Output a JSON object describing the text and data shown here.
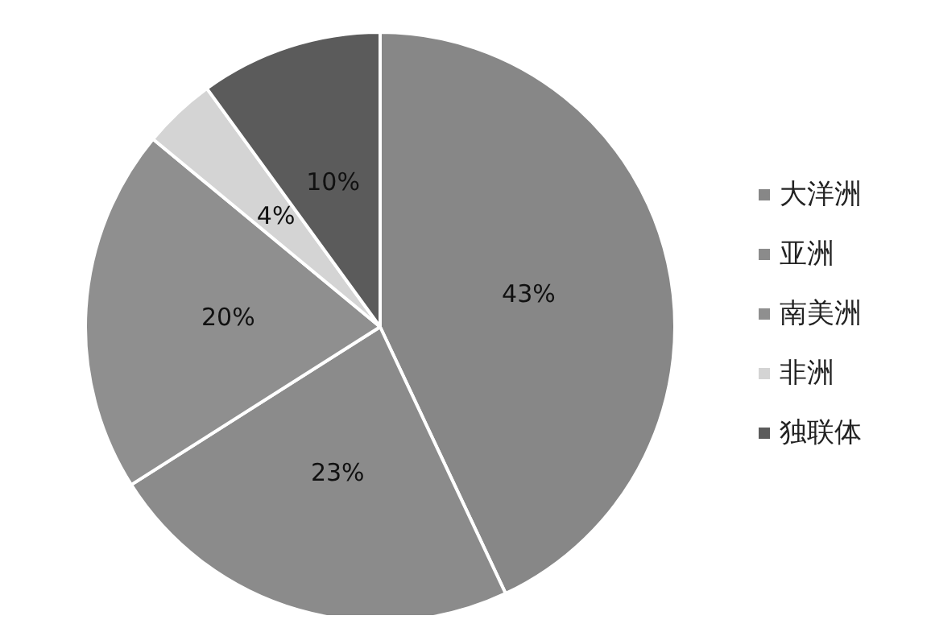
{
  "chart_data": {
    "type": "pie",
    "categories": [
      "大洋洲",
      "亚洲",
      "南美洲",
      "非洲",
      "独联体"
    ],
    "values": [
      43,
      23,
      20,
      4,
      10
    ],
    "value_labels": [
      "43%",
      "23%",
      "20%",
      "4%",
      "10%"
    ],
    "colors": [
      "#878787",
      "#8b8b8b",
      "#8f8f8f",
      "#d4d4d4",
      "#5b5b5b"
    ],
    "legend": "right"
  }
}
